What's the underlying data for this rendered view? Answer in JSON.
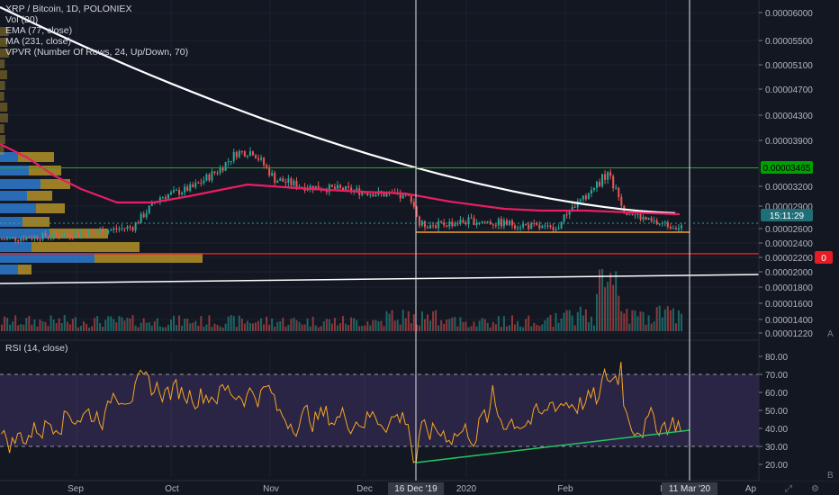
{
  "legend": {
    "symbol_line": "XRP / Bitcoin, 1D, POLONIEX",
    "indicators": [
      "Vol (20)",
      "EMA (77, close)",
      "MA (231, close)",
      "VPVR (Number Of Rows, 24, Up/Down, 70)"
    ]
  },
  "rsi_legend": "RSI (14, close)",
  "price_axis": {
    "ticks": [
      "0.00006000",
      "0.00005500",
      "0.00005100",
      "0.00004700",
      "0.00004300",
      "0.00003900",
      "0.00003200",
      "0.00002900",
      "0.00002600",
      "0.00002400",
      "0.00002200",
      "0.00002000",
      "0.00001800",
      "0.00001600",
      "0.00001400",
      "0.00001220"
    ],
    "badges": [
      {
        "text": "0.00003465",
        "bg": "#00a000",
        "fg": "#000000"
      },
      {
        "text": "15:11:29",
        "bg": "#1e6f77",
        "fg": "#ffffff"
      },
      {
        "text": "0",
        "bg": "#e51c23",
        "fg": "#ffffff"
      }
    ]
  },
  "rsi_axis": {
    "ticks": [
      "80.00",
      "70.00",
      "60.00",
      "50.00",
      "40.00",
      "30.00",
      "20.00"
    ]
  },
  "time_axis": {
    "labels": [
      "Sep",
      "Oct",
      "Nov",
      "Dec",
      "2020",
      "Feb",
      "Mar",
      "Ap"
    ],
    "crosshair_labels": [
      "16 Dec '19",
      "11 Mar '20"
    ]
  },
  "side_buttons": {
    "a": "A",
    "b": "B"
  },
  "colors": {
    "background": "#131722",
    "up": "#26a69a",
    "down": "#ef5350",
    "ema": "#e91e63",
    "ma": "#ffffff",
    "rsi_line": "#f5a623",
    "rsi_band": "#7e57c2",
    "trend_green": "#22c55e",
    "hline_green": "#22aa22",
    "hline_red": "#e51c23",
    "orange_line": "#f0a030"
  },
  "chart_data": {
    "type": "candlestick",
    "symbol": "XRP / Bitcoin",
    "interval": "1D",
    "exchange": "POLONIEX",
    "price_range": [
      1.22e-05,
      6.05e-05
    ],
    "price_scale": "log",
    "rsi_range": [
      15,
      85
    ],
    "ema_period": 77,
    "ma_period": 231,
    "rsi_period": 14,
    "horizontal_levels": [
      3.465e-05,
      2.25e-05
    ],
    "current_price": 2.61e-05,
    "vertical_markers": [
      "16 Dec '19",
      "11 Mar '20"
    ]
  }
}
